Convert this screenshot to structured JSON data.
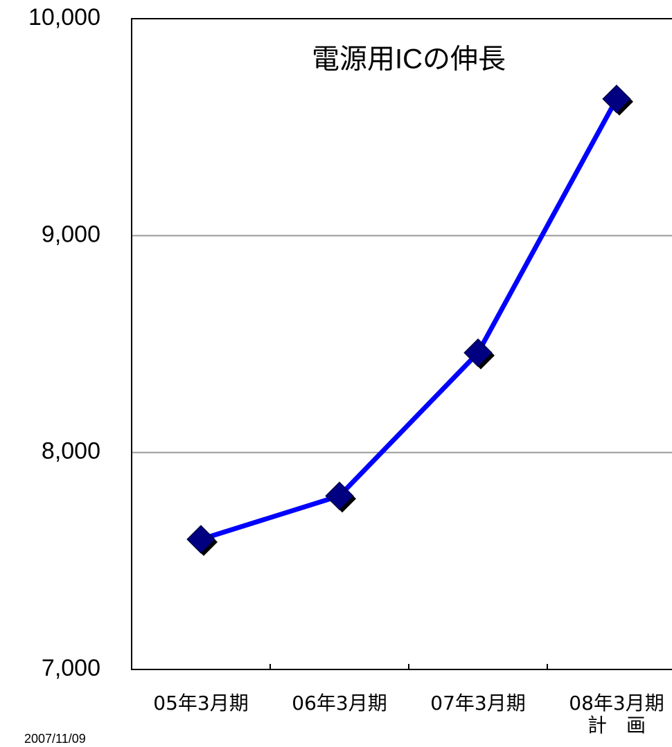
{
  "chart_data": {
    "type": "line",
    "title": "電源用ICの伸長",
    "annotation": "2007/11/09",
    "categories": [
      "05年3月期",
      "06年3月期",
      "07年3月期",
      "08年3月期\n計　画"
    ],
    "series": [
      {
        "name": "電源用IC",
        "color": "#0000ff",
        "marker_color": "#000080",
        "values": [
          7600,
          7800,
          8460,
          9630
        ]
      }
    ],
    "ylim": [
      7000,
      10000
    ],
    "yticks": [
      {
        "value": 7000,
        "label": "7,000"
      },
      {
        "value": 8000,
        "label": "8,000"
      },
      {
        "value": 9000,
        "label": "9,000"
      },
      {
        "value": 10000,
        "label": "10,000"
      }
    ],
    "grid": true
  }
}
